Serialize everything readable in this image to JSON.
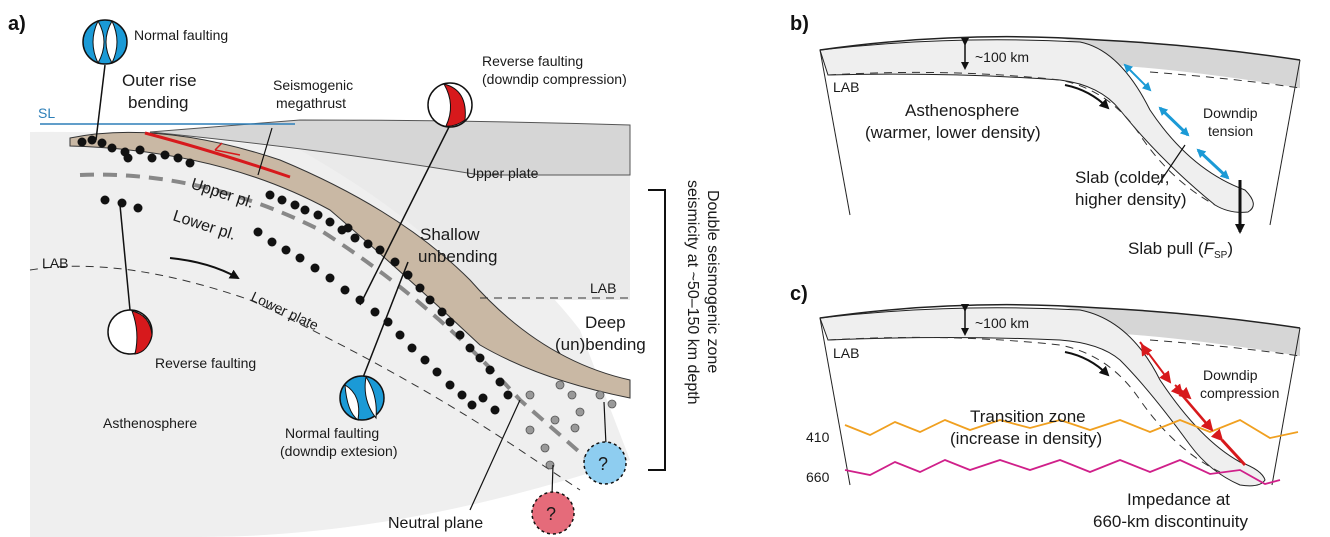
{
  "panels": {
    "a": "a)",
    "b": "b)",
    "c": "c)"
  },
  "panel_a": {
    "sl": "SL",
    "normal_faulting_top": "Normal faulting",
    "outer_rise_1": "Outer rise",
    "outer_rise_2": "bending",
    "seismogenic_1": "Seismogenic",
    "seismogenic_2": "megathrust",
    "reverse_top_1": "Reverse faulting",
    "reverse_top_2": "(downdip compression)",
    "upper_plate": "Upper plate",
    "upper_pl": "Upper pl.",
    "lower_pl": "Lower pl.",
    "shallow_1": "Shallow",
    "shallow_2": "unbending",
    "lab_left": "LAB",
    "lab_right": "LAB",
    "lower_plate": "Lower plate",
    "deep_1": "Deep",
    "deep_2": "(un)bending",
    "reverse_bottom": "Reverse faulting",
    "asthenosphere": "Asthenosphere",
    "normal_bottom_1": "Normal faulting",
    "normal_bottom_2": "(downdip extesion)",
    "neutral_plane": "Neutral plane",
    "question": "?",
    "double_zone_1": "Double seismogenic zone",
    "double_zone_2": "seismicity at ~50–150 km depth"
  },
  "panel_b": {
    "depth": "~100 km",
    "lab": "LAB",
    "asth_1": "Asthenosphere",
    "asth_2": "(warmer, lower density)",
    "downdip_1": "Downdip",
    "downdip_2": "tension",
    "slab_1": "Slab (colder,",
    "slab_2": "higher density)",
    "slab_pull": "Slab pull (",
    "f": "F",
    "sp": "SP",
    "close": ")"
  },
  "panel_c": {
    "depth": "~100 km",
    "lab": "LAB",
    "downdip_1": "Downdip",
    "downdip_2": "compression",
    "d410": "410",
    "d660": "660",
    "tz_1": "Transition zone",
    "tz_2": "(increase in density)",
    "imp_1": "Impedance at",
    "imp_2": "660-km discontinuity"
  },
  "colors": {
    "compression": "#d7191c",
    "extension": "#1b9ad6",
    "slab_crust": "#c9b8a4",
    "upper_plate_fill": "#d6d6d6",
    "mantle_fill": "#efefef",
    "sea_level": "#2d7fb8",
    "tz_410": "#f0a020",
    "tz_660": "#d0208a"
  }
}
